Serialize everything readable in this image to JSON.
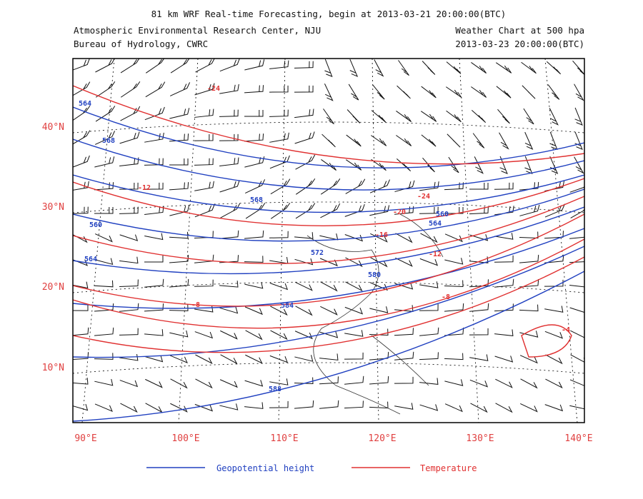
{
  "header": {
    "title": "81 km WRF Real-time Forecasting, begin at 2013-03-21 20:00:00(BTC)",
    "left_lines": [
      "Atmospheric Environmental Research Center, NJU",
      "Bureau of Hydrology, CWRC"
    ],
    "right_lines": [
      "Weather Chart at 500 hpa",
      "2013-03-23 20:00:00(BTC)"
    ]
  },
  "axes": {
    "latitude_labels": [
      "40°N",
      "30°N",
      "20°N",
      "10°N"
    ],
    "longitude_labels": [
      "90°E",
      "100°E",
      "110°E",
      "120°E",
      "130°E",
      "140°E"
    ]
  },
  "contour_labels": {
    "geopotential_height": [
      "564",
      "568",
      "568",
      "560",
      "564",
      "572",
      "580",
      "584",
      "588",
      "560",
      "564"
    ],
    "temperature": [
      "-24",
      "-12",
      "-24",
      "-20",
      "-16",
      "-12",
      "-8",
      "-8",
      "-4"
    ]
  },
  "legend": {
    "items": [
      "Geopotential height",
      "Temperature"
    ]
  }
}
